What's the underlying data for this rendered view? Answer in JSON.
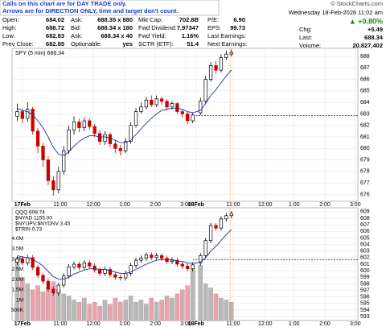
{
  "notice": [
    "Calls on this chart are for DAY TRADE only.",
    "Arrows are for DIRECTION ONLY, time and target don't count."
  ],
  "copyright": "© StockCharts.com",
  "datetime": "Wednesday 18-Feb-2026 11:02 am",
  "quote": {
    "rows": [
      [
        "Open:",
        "684.02",
        "Ask:",
        "688.35 x 880",
        "Mkt Cap:",
        "702.8B",
        "P/E:",
        "6.90"
      ],
      [
        "High:",
        "688.72",
        "Bid:",
        "688.34 x 180",
        "Fwd Dividend:",
        "7.97347",
        "EPS:",
        "99.73"
      ],
      [
        "Low:",
        "682.83",
        "Ask:",
        "688.34 x 40",
        "Fwd Yield:",
        "1.16%",
        "Last Earnings:",
        ""
      ],
      [
        "Prev Close:",
        "682.85",
        "Optionable:",
        "yes",
        "SCTR (ETF):",
        "51.4",
        "Next Earnings:",
        ""
      ]
    ],
    "change_pct": "▲ +0.80%",
    "side": [
      [
        "Chg:",
        "+5.49"
      ],
      [
        "Last:",
        "688.34"
      ],
      [
        "Volume:",
        "20,827,402"
      ]
    ]
  },
  "chart_data": [
    {
      "type": "candlestick",
      "title": "SPY (5 min) 688.34",
      "x": [
        2,
        4,
        6,
        8,
        10,
        12,
        14,
        16,
        18,
        20,
        22,
        24,
        26,
        28,
        30,
        32,
        34,
        36,
        38,
        40,
        42,
        44,
        46,
        48,
        50,
        52,
        54,
        56,
        58,
        60,
        62,
        64,
        66,
        68,
        70,
        73,
        75,
        77,
        79,
        81,
        83,
        85
      ],
      "open": [
        682.8,
        683.2,
        682.6,
        683.4,
        681.5,
        680.2,
        679.0,
        677.2,
        676.4,
        678.0,
        679.8,
        681.6,
        682.3,
        681.8,
        682.4,
        681.9,
        681.3,
        680.6,
        681.2,
        680.4,
        680.0,
        679.8,
        680.6,
        682.0,
        683.2,
        683.6,
        684.2,
        683.8,
        684.3,
        684.1,
        683.6,
        683.9,
        683.2,
        683.0,
        682.4,
        683.1,
        684.1,
        686.0,
        687.2,
        686.8,
        687.9,
        688.2
      ],
      "high": [
        683.9,
        683.5,
        684.0,
        683.6,
        681.8,
        680.5,
        679.3,
        677.6,
        678.4,
        680.2,
        682.0,
        682.8,
        682.6,
        682.7,
        682.6,
        682.1,
        681.6,
        681.5,
        681.4,
        680.7,
        680.3,
        680.9,
        682.3,
        683.5,
        684.0,
        684.5,
        684.6,
        684.6,
        684.5,
        684.3,
        684.1,
        684.0,
        683.4,
        683.2,
        683.1,
        684.4,
        686.3,
        687.5,
        687.6,
        688.2,
        688.5,
        688.6
      ],
      "low": [
        682.4,
        682.2,
        682.3,
        681.2,
        679.6,
        678.4,
        676.8,
        675.9,
        676.1,
        677.7,
        679.5,
        681.2,
        681.4,
        681.5,
        681.6,
        681.0,
        680.3,
        680.3,
        680.1,
        679.6,
        679.4,
        679.6,
        680.4,
        681.8,
        683.0,
        683.4,
        683.6,
        683.6,
        683.8,
        683.3,
        683.4,
        683.0,
        682.7,
        682.1,
        682.2,
        682.9,
        683.9,
        685.8,
        686.5,
        686.6,
        687.7,
        688.0
      ],
      "close": [
        683.2,
        682.6,
        683.4,
        681.5,
        680.2,
        679.0,
        677.2,
        676.4,
        678.0,
        679.8,
        681.6,
        682.3,
        681.8,
        682.4,
        681.9,
        681.3,
        680.6,
        681.2,
        680.4,
        680.0,
        679.8,
        680.6,
        682.0,
        683.2,
        683.6,
        684.2,
        683.8,
        684.3,
        684.1,
        683.6,
        683.9,
        683.2,
        683.0,
        682.4,
        682.9,
        684.1,
        686.0,
        687.2,
        686.8,
        687.9,
        688.2,
        688.34
      ],
      "ma": {
        "color": "#1f2fa0",
        "values": [
          683.5,
          683.3,
          683.2,
          682.9,
          682.4,
          681.8,
          681.0,
          680.1,
          679.5,
          679.4,
          679.7,
          680.2,
          680.6,
          680.9,
          681.1,
          681.1,
          681.0,
          681.0,
          680.9,
          680.7,
          680.5,
          680.5,
          680.7,
          681.2,
          681.7,
          682.2,
          682.6,
          683.0,
          683.3,
          683.4,
          683.5,
          683.5,
          683.4,
          683.2,
          683.1,
          683.3,
          683.9,
          684.6,
          685.1,
          685.7,
          686.3,
          686.8
        ]
      },
      "up_color": "#000000",
      "down_color": "#cc0000",
      "hline": 682.85,
      "hline_color": "#2233aa",
      "vline_x": 84.5,
      "vline_color": "#f0a020",
      "xlim": [
        0,
        134
      ],
      "xticks": [
        {
          "value": 4,
          "label": "17Feb"
        },
        {
          "value": 18.7,
          "label": "11:00"
        },
        {
          "value": 31.5,
          "label": "12:00"
        },
        {
          "value": 43.6,
          "label": "1:00"
        },
        {
          "value": 55.5,
          "label": "2:00"
        },
        {
          "value": 67.3,
          "label": "3:00"
        },
        {
          "value": 71.3,
          "label": "18Feb"
        },
        {
          "value": 85.7,
          "label": "11:00"
        },
        {
          "value": 98.1,
          "label": "12:00"
        },
        {
          "value": 109.3,
          "label": "1:00"
        },
        {
          "value": 121.2,
          "label": "2:00"
        },
        {
          "value": 133,
          "label": "3:00"
        }
      ],
      "ylim": [
        675.4,
        688.7
      ],
      "yticks": [
        676,
        677,
        678,
        679,
        680,
        681,
        682,
        683,
        684,
        685,
        686,
        687,
        688
      ],
      "grid": true
    },
    {
      "type": "candlestick",
      "legend": [
        "QQQ 608.74",
        "$NYAD 1155.00",
        "$NYUPV:$NYDNV 3.45",
        "$TRIN 0.73"
      ],
      "x": [
        2,
        4,
        6,
        8,
        10,
        12,
        14,
        16,
        18,
        20,
        22,
        24,
        26,
        28,
        30,
        32,
        34,
        36,
        38,
        40,
        42,
        44,
        46,
        48,
        50,
        52,
        54,
        56,
        58,
        60,
        62,
        64,
        66,
        68,
        70,
        73,
        75,
        77,
        79,
        81,
        83,
        85
      ],
      "open": [
        601.3,
        601.8,
        601.2,
        602.0,
        600.5,
        599.3,
        598.4,
        597.2,
        596.6,
        597.8,
        599.2,
        600.6,
        601.0,
        600.5,
        601.2,
        600.7,
        600.1,
        599.6,
        600.2,
        599.4,
        599.0,
        598.9,
        599.6,
        600.8,
        601.6,
        601.9,
        602.4,
        602.0,
        602.3,
        601.9,
        601.4,
        601.6,
        601.0,
        600.7,
        600.3,
        601.2,
        602.3,
        604.6,
        606.9,
        606.5,
        607.9,
        608.4
      ],
      "high": [
        602.2,
        602.2,
        602.4,
        602.4,
        600.9,
        599.7,
        598.8,
        597.6,
        598.2,
        599.6,
        601.0,
        601.4,
        601.4,
        601.6,
        601.6,
        601.1,
        600.5,
        600.6,
        600.6,
        599.8,
        599.4,
        600.0,
        601.2,
        602.0,
        602.3,
        602.8,
        602.8,
        602.7,
        602.7,
        602.3,
        602.0,
        602.0,
        601.4,
        601.1,
        601.3,
        602.7,
        605.0,
        607.3,
        607.3,
        608.3,
        608.8,
        609.1
      ],
      "low": [
        600.9,
        600.8,
        600.8,
        600.1,
        598.9,
        598.0,
        596.8,
        596.2,
        596.2,
        597.4,
        598.8,
        600.2,
        600.1,
        600.1,
        600.3,
        599.7,
        599.2,
        599.2,
        599.0,
        598.6,
        598.5,
        598.5,
        599.2,
        600.4,
        601.2,
        601.5,
        601.6,
        601.6,
        601.5,
        601.0,
        601.0,
        600.6,
        600.3,
        599.9,
        599.9,
        600.8,
        601.9,
        604.2,
        606.1,
        606.1,
        607.5,
        608.0
      ],
      "close": [
        601.8,
        601.2,
        602.0,
        600.5,
        599.3,
        598.4,
        597.2,
        596.6,
        597.8,
        599.2,
        600.6,
        601.0,
        600.5,
        601.2,
        600.7,
        600.1,
        599.6,
        600.2,
        599.4,
        599.0,
        598.9,
        599.6,
        600.8,
        601.6,
        601.9,
        602.4,
        602.0,
        602.3,
        601.9,
        601.4,
        601.6,
        601.0,
        600.7,
        600.3,
        600.9,
        602.3,
        604.6,
        606.9,
        606.5,
        607.9,
        608.4,
        608.74
      ],
      "ma": {
        "color": "#1f2fa0",
        "values": [
          602.3,
          602.1,
          602.0,
          601.7,
          601.3,
          600.7,
          599.9,
          599.1,
          598.7,
          598.7,
          599.0,
          599.5,
          599.8,
          600.1,
          600.3,
          600.3,
          600.2,
          600.2,
          600.0,
          599.8,
          599.6,
          599.6,
          599.8,
          600.2,
          600.6,
          601.0,
          601.3,
          601.6,
          601.7,
          601.7,
          601.7,
          601.5,
          601.4,
          601.2,
          601.1,
          601.3,
          602.0,
          603.0,
          603.7,
          604.6,
          605.5,
          606.3
        ]
      },
      "volume": {
        "axis": "y2",
        "up_color": "#b8b8b8",
        "down_color": "#eaa2ac",
        "values": [
          3000000,
          2100000,
          1800000,
          1500000,
          1700000,
          1400000,
          1600000,
          1900000,
          1500000,
          1300000,
          1200000,
          1000000,
          900000,
          1100000,
          800000,
          900000,
          700000,
          1000000,
          800000,
          1100000,
          900000,
          1000000,
          1200000,
          900000,
          1000000,
          800000,
          1100000,
          900000,
          1000000,
          1200000,
          1100000,
          1300000,
          1500000,
          1700000,
          2500000,
          2700000,
          1800000,
          1600000,
          1300000,
          1100000,
          1000000,
          900000
        ]
      },
      "up_color": "#000000",
      "down_color": "#cc0000",
      "hline": 601.7,
      "hline_color": "#2233aa",
      "vline_x": 84.5,
      "vline_color": "#f0a020",
      "xlim": [
        0,
        134
      ],
      "xticks": [
        {
          "value": 4,
          "label": "17Feb"
        },
        {
          "value": 18.7,
          "label": "11:00"
        },
        {
          "value": 31.5,
          "label": "12:00"
        },
        {
          "value": 43.6,
          "label": "1:00"
        },
        {
          "value": 55.5,
          "label": "2:00"
        },
        {
          "value": 67.3,
          "label": "3:00"
        },
        {
          "value": 71.3,
          "label": "18Feb"
        },
        {
          "value": 85.7,
          "label": "11:00"
        },
        {
          "value": 98.1,
          "label": "12:00"
        },
        {
          "value": 109.3,
          "label": "1:00"
        },
        {
          "value": 121.2,
          "label": "2:00"
        },
        {
          "value": 133,
          "label": "3:00"
        }
      ],
      "ylim": [
        592.4,
        609.6
      ],
      "yticks": [
        593,
        594,
        595,
        596,
        597,
        598,
        599,
        600,
        601,
        602,
        603,
        604,
        605,
        606,
        607,
        608,
        609
      ],
      "y2lim": [
        0,
        5500000
      ],
      "y2ticks": [
        {
          "value": 500000,
          "label": "500K"
        },
        {
          "value": 1000000,
          "label": "1M"
        },
        {
          "value": 1500000,
          "label": "1.5M"
        },
        {
          "value": 2000000,
          "label": "2.0M"
        },
        {
          "value": 2500000,
          "label": "2.5M"
        },
        {
          "value": 3000000,
          "label": "3.0M"
        },
        {
          "value": 3500000,
          "label": "3.5M"
        },
        {
          "value": 4000000,
          "label": "4.0M"
        }
      ],
      "grid": true
    }
  ]
}
